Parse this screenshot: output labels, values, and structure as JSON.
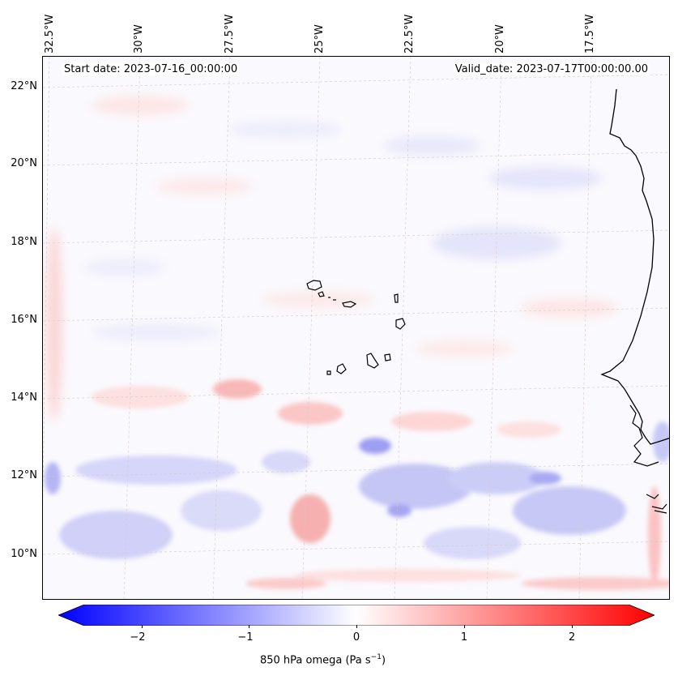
{
  "map": {
    "lon_labels": [
      "32.5°W",
      "30°W",
      "27.5°W",
      "25°W",
      "22.5°W",
      "20°W",
      "17.5°W"
    ],
    "lat_labels": [
      "22°N",
      "20°N",
      "18°N",
      "16°N",
      "14°N",
      "12°N",
      "10°N"
    ],
    "start_date": "Start date: 2023-07-16_00:00:00",
    "valid_date": "Valid_date: 2023-07-17T00:00:00.00"
  },
  "colorbar": {
    "ticks": [
      "−2",
      "−1",
      "0",
      "1",
      "2"
    ],
    "label_main": "850 hPa omega (Pa s",
    "label_sup": "−1",
    "label_end": ")",
    "min_color": "#0000ff",
    "mid_color": "#ffffff",
    "max_color": "#ff0000"
  }
}
